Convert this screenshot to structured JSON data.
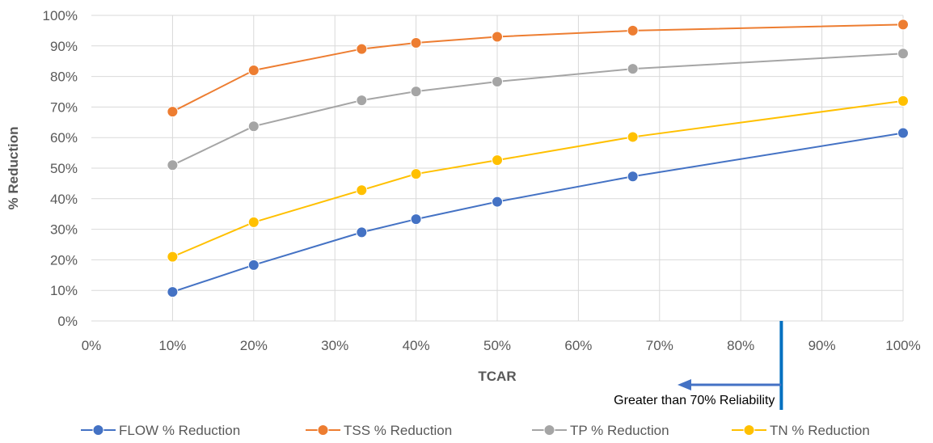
{
  "chart_data": {
    "type": "line",
    "title": "",
    "xlabel": "TCAR",
    "ylabel": "% Reduction",
    "xlim": [
      0,
      100
    ],
    "ylim": [
      0,
      100
    ],
    "x_ticks": [
      "0%",
      "10%",
      "20%",
      "30%",
      "40%",
      "50%",
      "60%",
      "70%",
      "80%",
      "90%",
      "100%"
    ],
    "y_ticks": [
      "0%",
      "10%",
      "20%",
      "30%",
      "40%",
      "50%",
      "60%",
      "70%",
      "80%",
      "90%",
      "100%"
    ],
    "grid": true,
    "legend_position": "bottom",
    "x": [
      10,
      20,
      33.3,
      40,
      50,
      66.7,
      100
    ],
    "series": [
      {
        "name": "FLOW % Reduction",
        "color": "#4472C4",
        "values": [
          9.5,
          18.3,
          29,
          33.3,
          39,
          47.3,
          61.5
        ]
      },
      {
        "name": "TSS % Reduction",
        "color": "#ED7D31",
        "values": [
          68.5,
          82,
          89,
          91,
          93,
          95,
          97
        ]
      },
      {
        "name": "TP % Reduction",
        "color": "#A5A5A5",
        "values": [
          51,
          63.7,
          72.2,
          75.1,
          78.3,
          82.5,
          87.5
        ]
      },
      {
        "name": "TN % Reduction",
        "color": "#FFC000",
        "values": [
          21,
          32.3,
          42.8,
          48.1,
          52.6,
          60.2,
          72
        ]
      }
    ],
    "annotation": {
      "text": "Greater than 70% Reliability",
      "marker_x": 85,
      "arrow_direction": "left",
      "color": "#0070C0"
    }
  }
}
